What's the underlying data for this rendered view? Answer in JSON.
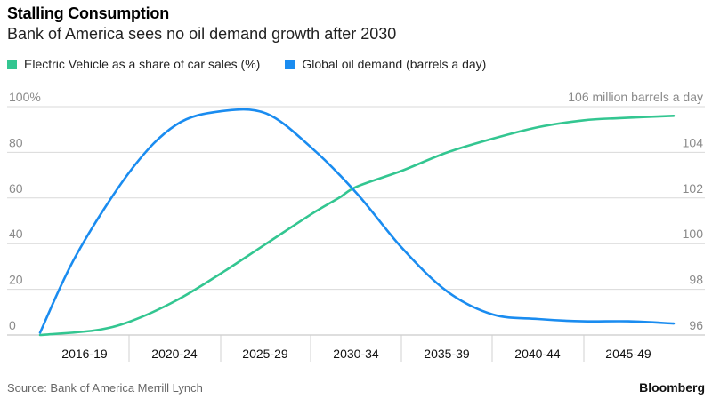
{
  "title": "Stalling Consumption",
  "subtitle": "Bank of America sees no oil demand growth after 2030",
  "source": "Source: Bank of America Merrill Lynch",
  "brand": "Bloomberg",
  "legend": [
    {
      "label": "Electric Vehicle as a share of car sales (%)",
      "color": "#33c691"
    },
    {
      "label": "Global oil demand (barrels a day)",
      "color": "#1a8cf0"
    }
  ],
  "chart_data": {
    "type": "line",
    "categories": [
      "2016-19",
      "2020-24",
      "2025-29",
      "2030-34",
      "2035-39",
      "2040-44",
      "2045-49"
    ],
    "left_axis": {
      "ticks": [
        "100%",
        "80",
        "60",
        "40",
        "20",
        "0"
      ],
      "tick_values": [
        100,
        80,
        60,
        40,
        20,
        0
      ],
      "ylim": [
        0,
        100
      ]
    },
    "right_axis": {
      "ticks": [
        "106 million barrels a day",
        "104",
        "102",
        "100",
        "98",
        "96"
      ],
      "tick_values": [
        106,
        104,
        102,
        100,
        98,
        96
      ],
      "ylim": [
        96,
        106
      ]
    },
    "grid": true,
    "legend_position": "top-left",
    "series": [
      {
        "name": "Electric Vehicle as a share of car sales (%)",
        "axis": "left",
        "color": "#33c691",
        "x": [
          0,
          0.6,
          1,
          1.5,
          2,
          2.5,
          3,
          3.3,
          3.5,
          4,
          4.5,
          5,
          5.5,
          6,
          6.4,
          7
        ],
        "values": [
          0,
          2,
          6,
          15,
          27,
          40,
          53,
          60,
          65,
          72,
          80,
          86,
          91,
          94,
          95,
          96
        ]
      },
      {
        "name": "Global oil demand (barrels a day)",
        "axis": "right",
        "color": "#1a8cf0",
        "x": [
          0,
          0.4,
          1,
          1.5,
          2,
          2.5,
          3,
          3.5,
          4,
          4.5,
          5,
          5.5,
          6,
          6.5,
          7
        ],
        "values": [
          96.1,
          99.5,
          103.2,
          105.2,
          105.8,
          105.7,
          104.2,
          102.2,
          99.8,
          97.9,
          96.9,
          96.7,
          96.6,
          96.6,
          96.5
        ]
      }
    ]
  }
}
